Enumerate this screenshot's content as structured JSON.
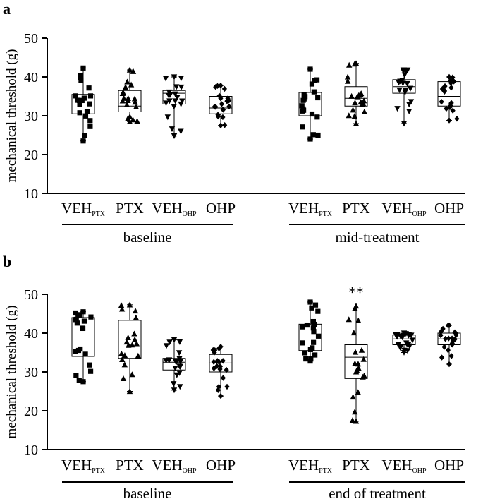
{
  "figure": {
    "panels": [
      "a",
      "b"
    ]
  },
  "colors": {
    "ink": "#000000",
    "background": "#ffffff"
  },
  "chart_data": [
    {
      "panel": "a",
      "type": "box",
      "ylabel": "mechanical threshold (g)",
      "ylim": [
        10,
        50
      ],
      "yticks": [
        10,
        20,
        30,
        40,
        50
      ],
      "groups": [
        {
          "label": "baseline",
          "categories": [
            {
              "main": "VEH",
              "sub": "PTX",
              "marker": "square",
              "box": {
                "min": 23.5,
                "q1": 30.5,
                "median": 33.0,
                "q3": 35.5,
                "max": 42.3
              }
            },
            {
              "main": "PTX",
              "sub": "",
              "marker": "triangle",
              "box": {
                "min": 28.5,
                "q1": 31.0,
                "median": 32.5,
                "q3": 36.5,
                "max": 41.8
              }
            },
            {
              "main": "VEH",
              "sub": "OHP",
              "marker": "tri-down",
              "box": {
                "min": 24.8,
                "q1": 33.0,
                "median": 35.8,
                "q3": 36.5,
                "max": 40.0
              }
            },
            {
              "main": "OHP",
              "sub": "",
              "marker": "diamond",
              "box": {
                "min": 27.5,
                "q1": 30.5,
                "median": 32.0,
                "q3": 35.0,
                "max": 37.8
              }
            }
          ]
        },
        {
          "label": "mid-treatment",
          "categories": [
            {
              "main": "VEH",
              "sub": "PTX",
              "marker": "square",
              "box": {
                "min": 24.0,
                "q1": 30.0,
                "median": 33.0,
                "q3": 36.0,
                "max": 42.0
              }
            },
            {
              "main": "PTX",
              "sub": "",
              "marker": "triangle",
              "box": {
                "min": 28.0,
                "q1": 32.5,
                "median": 34.5,
                "q3": 37.5,
                "max": 43.5
              }
            },
            {
              "main": "VEH",
              "sub": "OHP",
              "marker": "tri-down",
              "box": {
                "min": 28.0,
                "q1": 35.8,
                "median": 37.5,
                "q3": 39.3,
                "max": 41.8
              }
            },
            {
              "main": "OHP",
              "sub": "",
              "marker": "diamond",
              "box": {
                "min": 28.8,
                "q1": 32.5,
                "median": 35.0,
                "q3": 38.8,
                "max": 40.0
              }
            }
          ]
        }
      ],
      "annotations": []
    },
    {
      "panel": "b",
      "type": "box",
      "ylabel": "mechanical threshold (g)",
      "ylim": [
        10,
        50
      ],
      "yticks": [
        10,
        20,
        30,
        40,
        50
      ],
      "groups": [
        {
          "label": "baseline",
          "categories": [
            {
              "main": "VEH",
              "sub": "PTX",
              "marker": "square",
              "box": {
                "min": 27.5,
                "q1": 34.0,
                "median": 39.0,
                "q3": 44.0,
                "max": 45.5
              }
            },
            {
              "main": "PTX",
              "sub": "",
              "marker": "triangle",
              "box": {
                "min": 25.0,
                "q1": 33.5,
                "median": 39.0,
                "q3": 43.3,
                "max": 47.3
              }
            },
            {
              "main": "VEH",
              "sub": "OHP",
              "marker": "tri-down",
              "box": {
                "min": 25.3,
                "q1": 30.5,
                "median": 32.5,
                "q3": 33.5,
                "max": 38.3
              }
            },
            {
              "main": "OHP",
              "sub": "",
              "marker": "diamond",
              "box": {
                "min": 23.8,
                "q1": 30.0,
                "median": 32.3,
                "q3": 34.5,
                "max": 36.5
              }
            }
          ]
        },
        {
          "label": "end of treatment",
          "categories": [
            {
              "main": "VEH",
              "sub": "PTX",
              "marker": "square",
              "box": {
                "min": 32.8,
                "q1": 35.5,
                "median": 39.0,
                "q3": 42.3,
                "max": 48.0
              }
            },
            {
              "main": "PTX",
              "sub": "",
              "marker": "triangle",
              "box": {
                "min": 17.3,
                "q1": 28.3,
                "median": 33.8,
                "q3": 37.0,
                "max": 47.0
              }
            },
            {
              "main": "VEH",
              "sub": "OHP",
              "marker": "tri-down",
              "box": {
                "min": 35.0,
                "q1": 37.0,
                "median": 38.5,
                "q3": 39.5,
                "max": 40.0
              }
            },
            {
              "main": "OHP",
              "sub": "",
              "marker": "diamond",
              "box": {
                "min": 32.0,
                "q1": 37.0,
                "median": 38.5,
                "q3": 40.0,
                "max": 42.0
              }
            }
          ]
        }
      ],
      "annotations": [
        {
          "group": 1,
          "category": 1,
          "text": "**"
        }
      ]
    }
  ]
}
